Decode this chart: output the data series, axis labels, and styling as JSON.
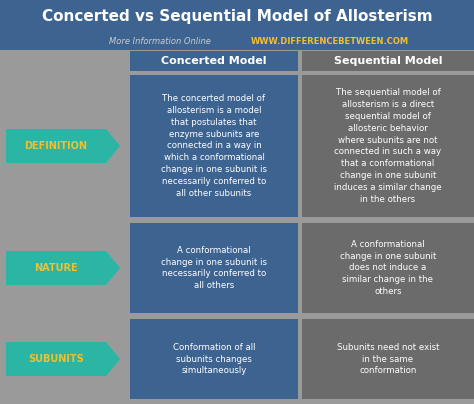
{
  "title": "Concerted vs Sequential Model of Allosterism",
  "subtitle_plain": "More Information Online",
  "subtitle_url": "WWW.DIFFERENCEBETWEEN.COM",
  "header_bg": "#3d6391",
  "table_bg": "#9a9a9a",
  "concerted_cell_bg": "#3d6391",
  "sequential_cell_bg": "#6b6b6b",
  "row_label_bg": "#2ab5a5",
  "row_label_text": "#f0c030",
  "header_text": "#ffffff",
  "col_headers": [
    "Concerted Model",
    "Sequential Model"
  ],
  "row_labels": [
    "DEFINITION",
    "NATURE",
    "SUBUNITS"
  ],
  "concerted_texts": [
    "The concerted model of\nallosterism is a model\nthat postulates that\nenzyme subunits are\nconnected in a way in\nwhich a conformational\nchange in one subunit is\nnecessarily conferred to\nall other subunits",
    "A conformational\nchange in one subunit is\nnecessarily conferred to\nall others",
    "Conformation of all\nsubunits changes\nsimultaneously"
  ],
  "sequential_texts": [
    "The sequential model of\nallosterism is a direct\nsequential model of\nallosteric behavior\nwhere subunits are not\nconnected in such a way\nthat a conformational\nchange in one subunit\ninduces a similar change\nin the others",
    "A conformational\nchange in one subunit\ndoes not induce a\nsimilar change in the\nothers",
    "Subunits need not exist\nin the same\nconformation"
  ],
  "title_fontsize": 11,
  "subtitle_fontsize": 6,
  "col_header_fontsize": 8,
  "row_label_fontsize": 7,
  "cell_fontsize": 6.2
}
